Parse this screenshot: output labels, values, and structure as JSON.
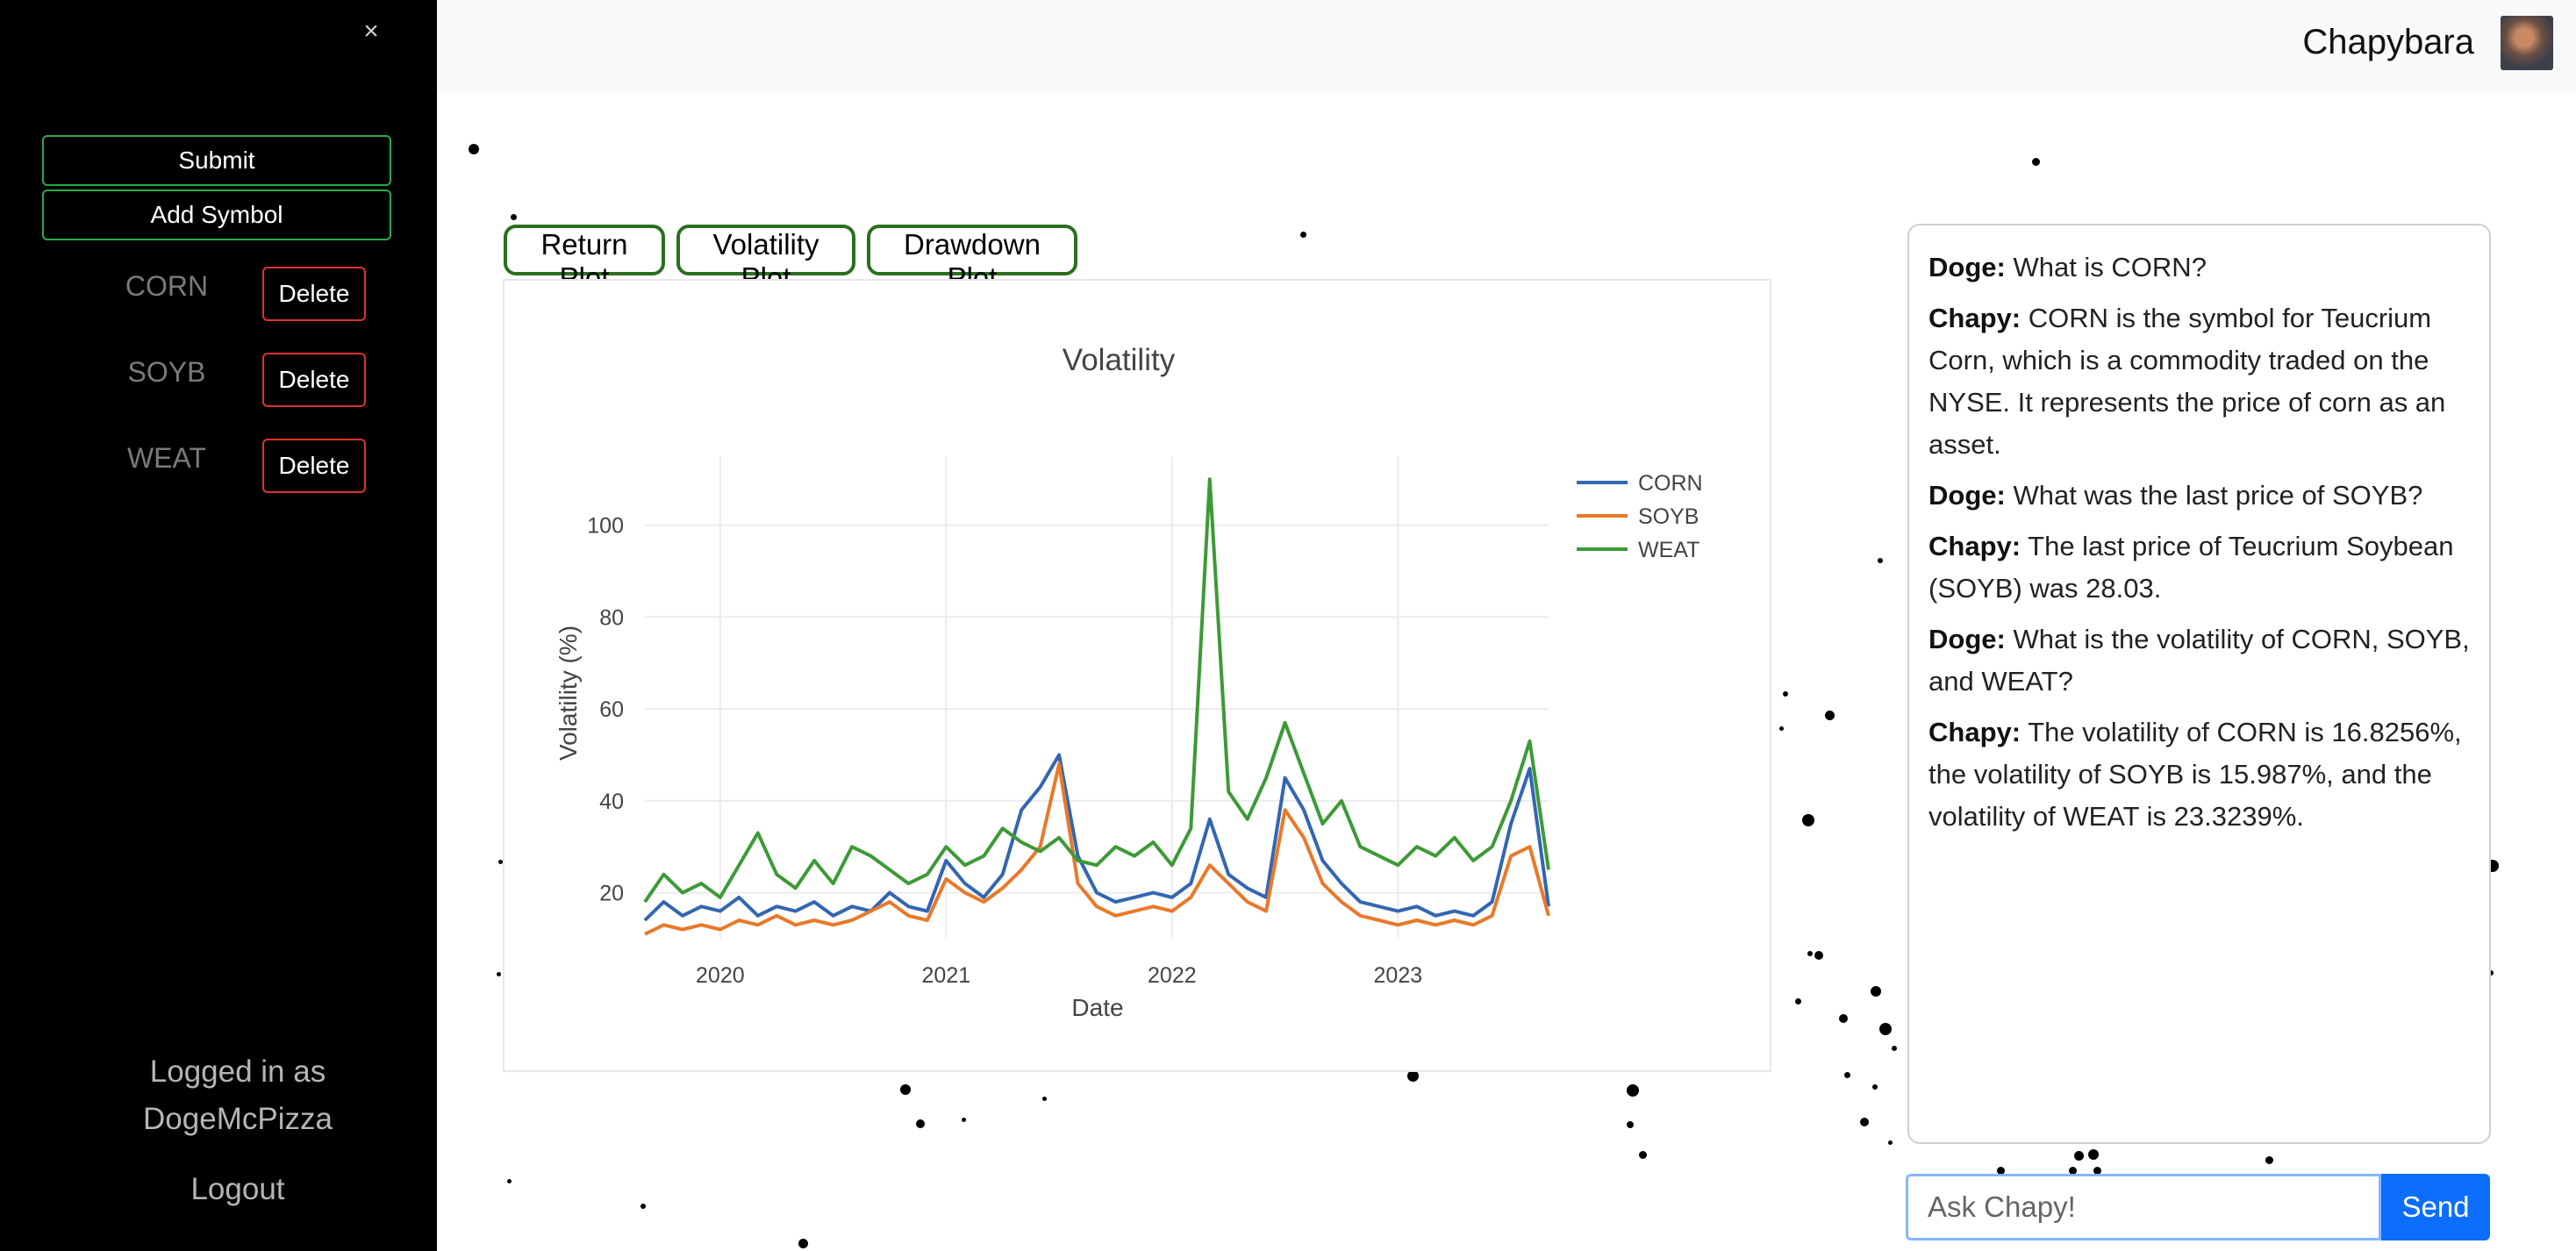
{
  "sidebar": {
    "close_label": "×",
    "submit_label": "Submit",
    "add_symbol_label": "Add Symbol",
    "symbols": [
      {
        "label": "CORN",
        "delete_label": "Delete"
      },
      {
        "label": "SOYB",
        "delete_label": "Delete"
      },
      {
        "label": "WEAT",
        "delete_label": "Delete"
      }
    ],
    "logged_in_prefix": "Logged in as",
    "username": "DogeMcPizza",
    "logout_label": "Logout"
  },
  "header": {
    "brand": "Chapybara",
    "avatar_icon": "user-avatar"
  },
  "plot_tabs": [
    {
      "label": "Return Plot"
    },
    {
      "label": "Volatility Plot"
    },
    {
      "label": "Drawdown Plot"
    }
  ],
  "chart_data": {
    "type": "line",
    "title": "Volatility",
    "xlabel": "Date",
    "ylabel": "Volatility (%)",
    "x_tick_labels": [
      "2020",
      "2021",
      "2022",
      "2023"
    ],
    "y_ticks": [
      20,
      40,
      60,
      80,
      100
    ],
    "ylim": [
      10,
      115
    ],
    "xlim": [
      "2019-09",
      "2023-09"
    ],
    "grid": true,
    "legend_position": "top-right",
    "series": [
      {
        "name": "CORN",
        "color": "#3366b2",
        "x": [
          "2019-09",
          "2019-10",
          "2019-11",
          "2019-12",
          "2020-01",
          "2020-02",
          "2020-03",
          "2020-04",
          "2020-05",
          "2020-06",
          "2020-07",
          "2020-08",
          "2020-09",
          "2020-10",
          "2020-11",
          "2020-12",
          "2021-01",
          "2021-02",
          "2021-03",
          "2021-04",
          "2021-05",
          "2021-06",
          "2021-07",
          "2021-08",
          "2021-09",
          "2021-10",
          "2021-11",
          "2021-12",
          "2022-01",
          "2022-02",
          "2022-03",
          "2022-04",
          "2022-05",
          "2022-06",
          "2022-07",
          "2022-08",
          "2022-09",
          "2022-10",
          "2022-11",
          "2022-12",
          "2023-01",
          "2023-02",
          "2023-03",
          "2023-04",
          "2023-05",
          "2023-06",
          "2023-07",
          "2023-08",
          "2023-09"
        ],
        "values": [
          14,
          18,
          15,
          17,
          16,
          19,
          15,
          17,
          16,
          18,
          15,
          17,
          16,
          20,
          17,
          16,
          27,
          22,
          19,
          24,
          38,
          43,
          50,
          28,
          20,
          18,
          19,
          20,
          19,
          22,
          36,
          24,
          21,
          19,
          45,
          38,
          27,
          22,
          18,
          17,
          16,
          17,
          15,
          16,
          15,
          18,
          35,
          47,
          17
        ]
      },
      {
        "name": "SOYB",
        "color": "#e8792a",
        "x": [
          "2019-09",
          "2019-10",
          "2019-11",
          "2019-12",
          "2020-01",
          "2020-02",
          "2020-03",
          "2020-04",
          "2020-05",
          "2020-06",
          "2020-07",
          "2020-08",
          "2020-09",
          "2020-10",
          "2020-11",
          "2020-12",
          "2021-01",
          "2021-02",
          "2021-03",
          "2021-04",
          "2021-05",
          "2021-06",
          "2021-07",
          "2021-08",
          "2021-09",
          "2021-10",
          "2021-11",
          "2021-12",
          "2022-01",
          "2022-02",
          "2022-03",
          "2022-04",
          "2022-05",
          "2022-06",
          "2022-07",
          "2022-08",
          "2022-09",
          "2022-10",
          "2022-11",
          "2022-12",
          "2023-01",
          "2023-02",
          "2023-03",
          "2023-04",
          "2023-05",
          "2023-06",
          "2023-07",
          "2023-08",
          "2023-09"
        ],
        "values": [
          11,
          13,
          12,
          13,
          12,
          14,
          13,
          15,
          13,
          14,
          13,
          14,
          16,
          18,
          15,
          14,
          23,
          20,
          18,
          21,
          25,
          30,
          48,
          22,
          17,
          15,
          16,
          17,
          16,
          19,
          26,
          22,
          18,
          16,
          38,
          32,
          22,
          18,
          15,
          14,
          13,
          14,
          13,
          14,
          13,
          15,
          28,
          30,
          15
        ]
      },
      {
        "name": "WEAT",
        "color": "#3d9a37",
        "x": [
          "2019-09",
          "2019-10",
          "2019-11",
          "2019-12",
          "2020-01",
          "2020-02",
          "2020-03",
          "2020-04",
          "2020-05",
          "2020-06",
          "2020-07",
          "2020-08",
          "2020-09",
          "2020-10",
          "2020-11",
          "2020-12",
          "2021-01",
          "2021-02",
          "2021-03",
          "2021-04",
          "2021-05",
          "2021-06",
          "2021-07",
          "2021-08",
          "2021-09",
          "2021-10",
          "2021-11",
          "2021-12",
          "2022-01",
          "2022-02",
          "2022-03",
          "2022-04",
          "2022-05",
          "2022-06",
          "2022-07",
          "2022-08",
          "2022-09",
          "2022-10",
          "2022-11",
          "2022-12",
          "2023-01",
          "2023-02",
          "2023-03",
          "2023-04",
          "2023-05",
          "2023-06",
          "2023-07",
          "2023-08",
          "2023-09"
        ],
        "values": [
          18,
          24,
          20,
          22,
          19,
          26,
          33,
          24,
          21,
          27,
          22,
          30,
          28,
          25,
          22,
          24,
          30,
          26,
          28,
          34,
          31,
          29,
          32,
          27,
          26,
          30,
          28,
          31,
          26,
          34,
          110,
          42,
          36,
          45,
          57,
          46,
          35,
          40,
          30,
          28,
          26,
          30,
          28,
          32,
          27,
          30,
          40,
          53,
          25
        ]
      }
    ]
  },
  "chat": {
    "messages": [
      {
        "who": "Doge:",
        "text": "What is CORN?"
      },
      {
        "who": "Chapy:",
        "text": "CORN is the symbol for Teucrium Corn, which is a commodity traded on the NYSE. It represents the price of corn as an asset."
      },
      {
        "who": "Doge:",
        "text": "What was the last price of SOYB?"
      },
      {
        "who": "Chapy:",
        "text": "The last price of Teucrium Soybean (SOYB) was 28.03."
      },
      {
        "who": "Doge:",
        "text": "What is the volatility of CORN, SOYB, and WEAT?"
      },
      {
        "who": "Chapy:",
        "text": "The volatility of CORN is 16.8256%, the volatility of SOYB is 15.987%, and the volatility of WEAT is 23.3239%."
      }
    ],
    "input_placeholder": "Ask Chapy!",
    "input_value": "",
    "send_label": "Send"
  }
}
